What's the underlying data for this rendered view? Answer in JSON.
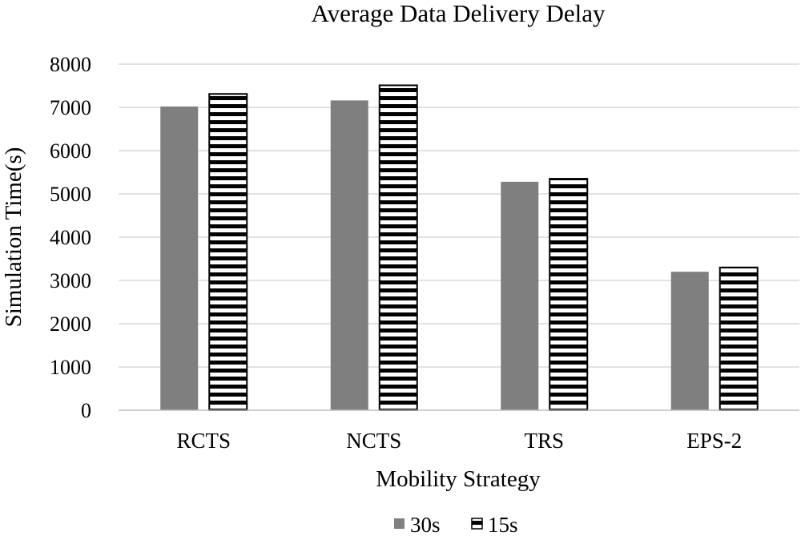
{
  "chart_data": {
    "type": "bar",
    "title": "Average Data Delivery Delay",
    "xlabel": "Mobility Strategy",
    "ylabel": "Simulation Time(s)",
    "categories": [
      "RCTS",
      "NCTS",
      "TRS",
      "EPS-2"
    ],
    "series": [
      {
        "name": "30s",
        "values": [
          7020,
          7160,
          5280,
          3200
        ],
        "color": "#7f7f7f",
        "pattern": "solid"
      },
      {
        "name": "15s",
        "values": [
          7310,
          7510,
          5350,
          3300
        ],
        "color": "#000000",
        "pattern": "horizontal-stripes"
      }
    ],
    "ylim": [
      0,
      8000
    ],
    "yticks": [
      "0",
      "1000",
      "2000",
      "3000",
      "4000",
      "5000",
      "6000",
      "7000",
      "8000"
    ],
    "grid": true,
    "legend": "bottom"
  }
}
